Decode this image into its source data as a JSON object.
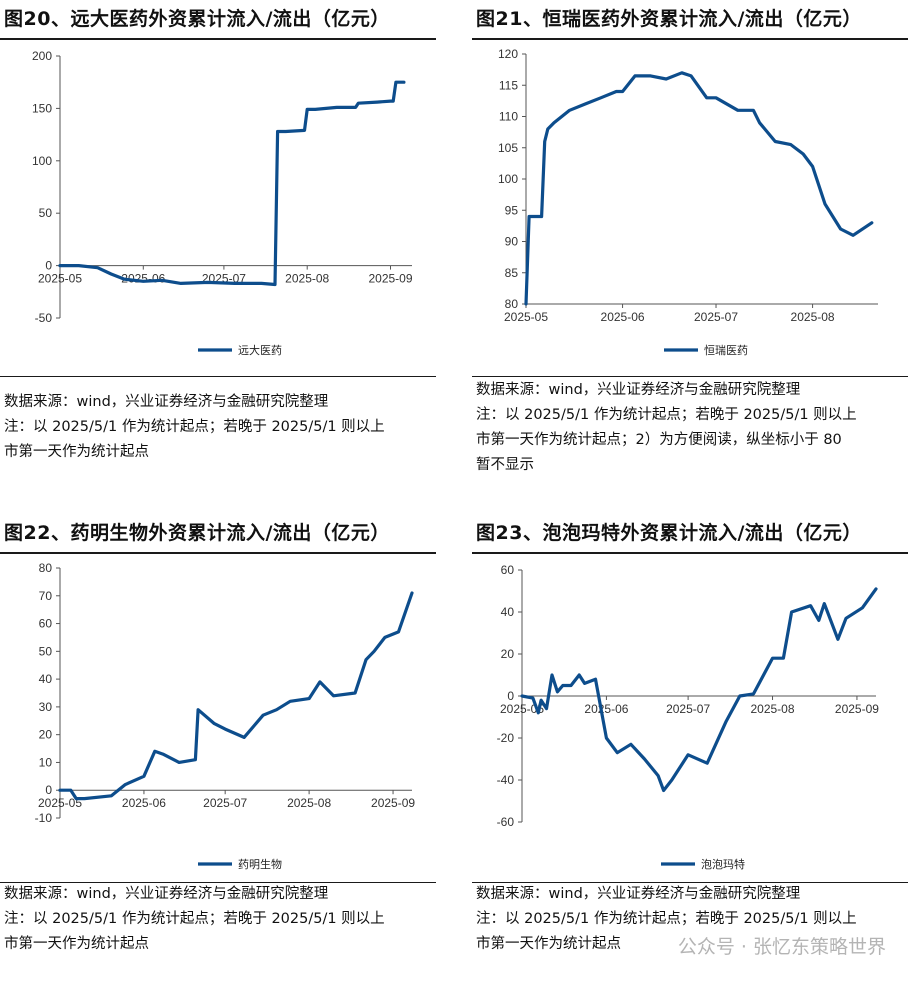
{
  "panels": [
    {
      "title": "图20、远大医药外资累计流入/流出（亿元）",
      "notes": [
        "数据来源：wind，兴业证券经济与金融研究院整理",
        "注：以 2025/5/1 作为统计起点；若晚于 2025/5/1 则以上",
        "市第一天作为统计起点"
      ]
    },
    {
      "title": "图21、恒瑞医药外资累计流入/流出（亿元）",
      "notes": [
        "数据来源：wind，兴业证券经济与金融研究院整理",
        "注：以 2025/5/1 作为统计起点；若晚于 2025/5/1 则以上",
        "市第一天作为统计起点；2）为方便阅读，纵坐标小于 80",
        "暂不显示"
      ]
    },
    {
      "title": "图22、药明生物外资累计流入/流出（亿元）",
      "notes": [
        "数据来源：wind，兴业证券经济与金融研究院整理",
        "注：以 2025/5/1 作为统计起点；若晚于 2025/5/1 则以上",
        "市第一天作为统计起点"
      ]
    },
    {
      "title": "图23、泡泡玛特外资累计流入/流出（亿元）",
      "notes": [
        "数据来源：wind，兴业证券经济与金融研究院整理",
        "注：以 2025/5/1 作为统计起点；若晚于 2025/5/1 则以上",
        "市第一天作为统计起点"
      ]
    }
  ],
  "watermark": "公众号 · 张忆东策略世界",
  "line_color": "#0d4d8c",
  "chart_data": [
    {
      "type": "line",
      "x_range": [
        "2025-05-01",
        "2025-09-09"
      ],
      "xticks": [
        "2025-05",
        "2025-06",
        "2025-07",
        "2025-08",
        "2025-09"
      ],
      "ylim": [
        -50,
        200
      ],
      "yticks": [
        -50,
        0,
        50,
        100,
        150,
        200
      ],
      "series": [
        {
          "name": "远大医药",
          "x": [
            "2025-05-01",
            "2025-05-08",
            "2025-05-15",
            "2025-05-20",
            "2025-05-25",
            "2025-06-01",
            "2025-06-08",
            "2025-06-15",
            "2025-06-25",
            "2025-07-05",
            "2025-07-15",
            "2025-07-20",
            "2025-07-21",
            "2025-07-24",
            "2025-07-31",
            "2025-08-01",
            "2025-08-04",
            "2025-08-12",
            "2025-08-19",
            "2025-08-20",
            "2025-08-27",
            "2025-09-01",
            "2025-09-02",
            "2025-09-03",
            "2025-09-06"
          ],
          "y": [
            0,
            0,
            -2,
            -8,
            -13,
            -15,
            -14,
            -17,
            -16,
            -17,
            -17,
            -18,
            128,
            128,
            129,
            149,
            149,
            151,
            151,
            155,
            156,
            157,
            157,
            175,
            175
          ]
        }
      ]
    },
    {
      "type": "line",
      "x_range": [
        "2025-05-01",
        "2025-08-22"
      ],
      "xticks": [
        "2025-05",
        "2025-06",
        "2025-07",
        "2025-08"
      ],
      "ylim": [
        80,
        120
      ],
      "yticks": [
        80,
        85,
        90,
        95,
        100,
        105,
        110,
        115,
        120
      ],
      "series": [
        {
          "name": "恒瑞医药",
          "x": [
            "2025-05-01",
            "2025-05-02",
            "2025-05-06",
            "2025-05-07",
            "2025-05-08",
            "2025-05-10",
            "2025-05-15",
            "2025-05-20",
            "2025-05-25",
            "2025-05-30",
            "2025-06-01",
            "2025-06-05",
            "2025-06-10",
            "2025-06-15",
            "2025-06-20",
            "2025-06-23",
            "2025-06-28",
            "2025-07-01",
            "2025-07-08",
            "2025-07-13",
            "2025-07-15",
            "2025-07-20",
            "2025-07-25",
            "2025-07-29",
            "2025-08-01",
            "2025-08-05",
            "2025-08-10",
            "2025-08-14",
            "2025-08-20"
          ],
          "y": [
            80,
            94,
            94,
            106,
            108,
            109,
            111,
            112,
            113,
            114,
            114,
            116.5,
            116.5,
            116,
            117,
            116.5,
            113,
            113,
            111,
            111,
            109,
            106,
            105.5,
            104,
            102,
            96,
            92,
            91,
            93
          ]
        }
      ]
    },
    {
      "type": "line",
      "x_range": [
        "2025-05-01",
        "2025-09-08"
      ],
      "xticks": [
        "2025-05",
        "2025-06",
        "2025-07",
        "2025-08",
        "2025-09"
      ],
      "ylim": [
        -10,
        80
      ],
      "yticks": [
        -10,
        0,
        10,
        20,
        30,
        40,
        50,
        60,
        70,
        80
      ],
      "series": [
        {
          "name": "药明生物",
          "x": [
            "2025-05-01",
            "2025-05-05",
            "2025-05-07",
            "2025-05-10",
            "2025-05-20",
            "2025-05-25",
            "2025-06-01",
            "2025-06-05",
            "2025-06-08",
            "2025-06-14",
            "2025-06-20",
            "2025-06-21",
            "2025-06-27",
            "2025-07-01",
            "2025-07-08",
            "2025-07-15",
            "2025-07-20",
            "2025-07-25",
            "2025-08-01",
            "2025-08-05",
            "2025-08-10",
            "2025-08-18",
            "2025-08-22",
            "2025-08-25",
            "2025-08-29",
            "2025-09-03",
            "2025-09-08"
          ],
          "y": [
            0,
            0,
            -3,
            -3,
            -2,
            2,
            5,
            14,
            13,
            10,
            11,
            29,
            24,
            22,
            19,
            27,
            29,
            32,
            33,
            39,
            34,
            35,
            47,
            50,
            55,
            57,
            71
          ]
        }
      ]
    },
    {
      "type": "line",
      "x_range": [
        "2025-05-01",
        "2025-09-08"
      ],
      "xticks": [
        "2025-05",
        "2025-06",
        "2025-07",
        "2025-08",
        "2025-09"
      ],
      "ylim": [
        -60,
        60
      ],
      "yticks": [
        -60,
        -40,
        -20,
        0,
        20,
        40,
        60
      ],
      "series": [
        {
          "name": "泡泡玛特",
          "x": [
            "2025-05-01",
            "2025-05-05",
            "2025-05-07",
            "2025-05-08",
            "2025-05-10",
            "2025-05-12",
            "2025-05-14",
            "2025-05-16",
            "2025-05-19",
            "2025-05-22",
            "2025-05-24",
            "2025-05-28",
            "2025-06-01",
            "2025-06-05",
            "2025-06-10",
            "2025-06-15",
            "2025-06-20",
            "2025-06-22",
            "2025-06-25",
            "2025-06-27",
            "2025-07-01",
            "2025-07-08",
            "2025-07-15",
            "2025-07-20",
            "2025-07-25",
            "2025-08-01",
            "2025-08-05",
            "2025-08-08",
            "2025-08-15",
            "2025-08-18",
            "2025-08-20",
            "2025-08-25",
            "2025-08-28",
            "2025-09-03",
            "2025-09-08"
          ],
          "y": [
            0,
            -1,
            -8,
            -2,
            -6,
            10,
            2,
            5,
            5,
            10,
            6,
            8,
            -20,
            -27,
            -23,
            -30,
            -38,
            -45,
            -40,
            -36,
            -28,
            -32,
            -12,
            0,
            1,
            18,
            18,
            40,
            43,
            36,
            44,
            27,
            37,
            42,
            51
          ]
        }
      ]
    }
  ]
}
